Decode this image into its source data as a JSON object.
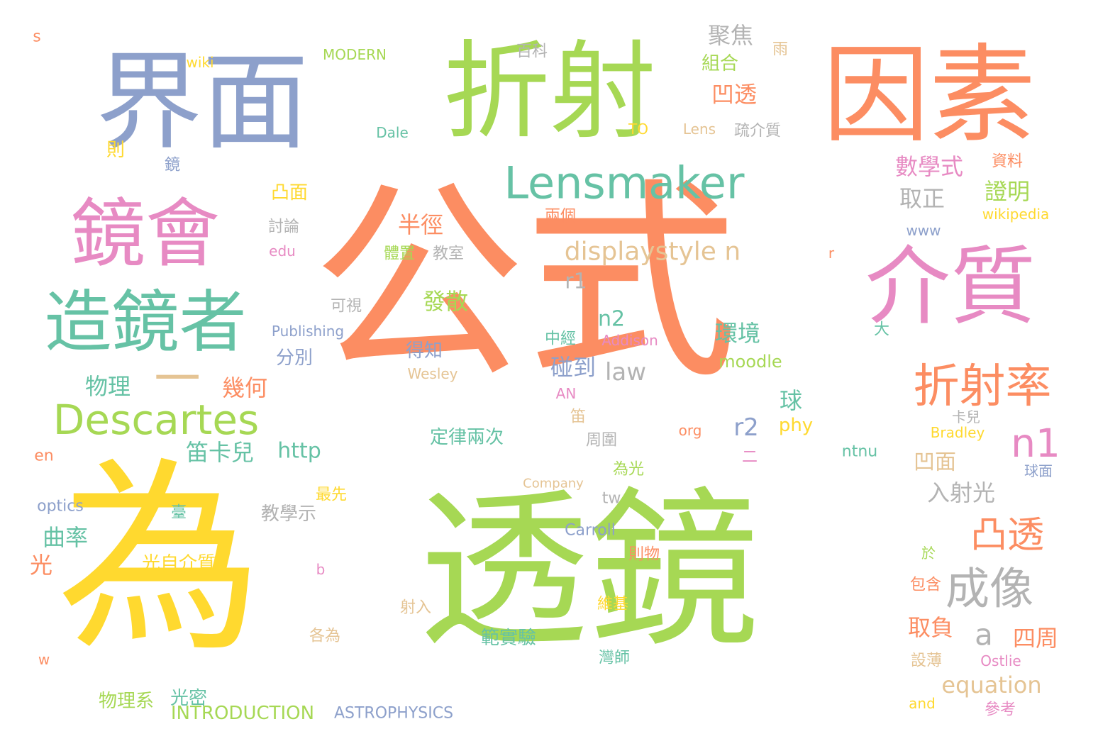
{
  "palette": {
    "orange": "#fc8d62",
    "green": "#a6d854",
    "blue": "#8da0cb",
    "pink": "#e78ac3",
    "teal": "#66c2a5",
    "yellow": "#ffd92f",
    "tan": "#e5c494",
    "gray": "#b3b3b3"
  },
  "words": [
    {
      "text": "公式",
      "color": "orange"
    },
    {
      "text": "透鏡",
      "color": "green"
    },
    {
      "text": "為",
      "color": "yellow"
    },
    {
      "text": "界面",
      "color": "blue"
    },
    {
      "text": "折射",
      "color": "green"
    },
    {
      "text": "因素",
      "color": "orange"
    },
    {
      "text": "鏡會",
      "color": "pink"
    },
    {
      "text": "介質",
      "color": "pink"
    },
    {
      "text": "造鏡者",
      "color": "teal"
    },
    {
      "text": "Lensmaker",
      "color": "teal"
    },
    {
      "text": "Descartes",
      "color": "green"
    },
    {
      "text": "折射率",
      "color": "orange"
    },
    {
      "text": "成像",
      "color": "gray"
    },
    {
      "text": "一",
      "color": "tan"
    },
    {
      "text": "凸透",
      "color": "orange"
    },
    {
      "text": "displaystyle n",
      "color": "tan"
    },
    {
      "text": "n1",
      "color": "pink"
    },
    {
      "text": "數學式",
      "color": "pink"
    },
    {
      "text": "證明",
      "color": "green"
    },
    {
      "text": "取正",
      "color": "gray"
    },
    {
      "text": "聚焦",
      "color": "gray"
    },
    {
      "text": "凹透",
      "color": "orange"
    },
    {
      "text": "組合",
      "color": "green"
    },
    {
      "text": "百科",
      "color": "gray"
    },
    {
      "text": "雨",
      "color": "tan"
    },
    {
      "text": "MODERN",
      "color": "green"
    },
    {
      "text": "wiki",
      "color": "yellow"
    },
    {
      "text": "s",
      "color": "orange"
    },
    {
      "text": "Dale",
      "color": "teal"
    },
    {
      "text": "TO",
      "color": "yellow"
    },
    {
      "text": "Lens",
      "color": "tan"
    },
    {
      "text": "疏介質",
      "color": "gray"
    },
    {
      "text": "則",
      "color": "yellow"
    },
    {
      "text": "鏡",
      "color": "blue"
    },
    {
      "text": "資料",
      "color": "orange"
    },
    {
      "text": "凸面",
      "color": "yellow"
    },
    {
      "text": "半徑",
      "color": "orange"
    },
    {
      "text": "討論",
      "color": "gray"
    },
    {
      "text": "兩個",
      "color": "orange"
    },
    {
      "text": "wikipedia",
      "color": "yellow"
    },
    {
      "text": "www",
      "color": "blue"
    },
    {
      "text": "edu",
      "color": "pink"
    },
    {
      "text": "體置",
      "color": "green"
    },
    {
      "text": "教室",
      "color": "gray"
    },
    {
      "text": "r",
      "color": "orange"
    },
    {
      "text": "r1",
      "color": "gray"
    },
    {
      "text": "可視",
      "color": "gray"
    },
    {
      "text": "發散",
      "color": "green"
    },
    {
      "text": "n2",
      "color": "teal"
    },
    {
      "text": "環境",
      "color": "teal"
    },
    {
      "text": "Publishing",
      "color": "blue"
    },
    {
      "text": "中經",
      "color": "teal"
    },
    {
      "text": "Addison",
      "color": "pink"
    },
    {
      "text": "大",
      "color": "teal"
    },
    {
      "text": "得知",
      "color": "blue"
    },
    {
      "text": "分別",
      "color": "blue"
    },
    {
      "text": "碰到",
      "color": "blue"
    },
    {
      "text": "law",
      "color": "gray"
    },
    {
      "text": "moodle",
      "color": "green"
    },
    {
      "text": "物理",
      "color": "teal"
    },
    {
      "text": "幾何",
      "color": "orange"
    },
    {
      "text": "Wesley",
      "color": "tan"
    },
    {
      "text": "AN",
      "color": "pink"
    },
    {
      "text": "球",
      "color": "teal"
    },
    {
      "text": "笛",
      "color": "tan"
    },
    {
      "text": "卡兒",
      "color": "gray"
    },
    {
      "text": "r2",
      "color": "blue"
    },
    {
      "text": "phy",
      "color": "yellow"
    },
    {
      "text": "二",
      "color": "pink"
    },
    {
      "text": "Bradley",
      "color": "yellow"
    },
    {
      "text": "笛卡兒",
      "color": "teal"
    },
    {
      "text": "http",
      "color": "teal"
    },
    {
      "text": "定律兩次",
      "color": "teal"
    },
    {
      "text": "周圍",
      "color": "gray"
    },
    {
      "text": "org",
      "color": "orange"
    },
    {
      "text": "ntnu",
      "color": "teal"
    },
    {
      "text": "凹面",
      "color": "tan"
    },
    {
      "text": "en",
      "color": "orange"
    },
    {
      "text": "球面",
      "color": "blue"
    },
    {
      "text": "為光",
      "color": "green"
    },
    {
      "text": "Company",
      "color": "tan"
    },
    {
      "text": "入射光",
      "color": "gray"
    },
    {
      "text": "optics",
      "color": "blue"
    },
    {
      "text": "最先",
      "color": "yellow"
    },
    {
      "text": "tw",
      "color": "gray"
    },
    {
      "text": "臺",
      "color": "teal"
    },
    {
      "text": "教學示",
      "color": "gray"
    },
    {
      "text": "曲率",
      "color": "teal"
    },
    {
      "text": "Carroll",
      "color": "blue"
    },
    {
      "text": "光自介質",
      "color": "yellow"
    },
    {
      "text": "則物",
      "color": "orange"
    },
    {
      "text": "於",
      "color": "green"
    },
    {
      "text": "光",
      "color": "orange"
    },
    {
      "text": "b",
      "color": "pink"
    },
    {
      "text": "包含",
      "color": "orange"
    },
    {
      "text": "射入",
      "color": "tan"
    },
    {
      "text": "維基",
      "color": "yellow"
    },
    {
      "text": "取負",
      "color": "orange"
    },
    {
      "text": "a",
      "color": "gray"
    },
    {
      "text": "四周",
      "color": "orange"
    },
    {
      "text": "各為",
      "color": "tan"
    },
    {
      "text": "範實驗",
      "color": "teal"
    },
    {
      "text": "w",
      "color": "orange"
    },
    {
      "text": "灣師",
      "color": "teal"
    },
    {
      "text": "設薄",
      "color": "tan"
    },
    {
      "text": "Ostlie",
      "color": "pink"
    },
    {
      "text": "equation",
      "color": "tan"
    },
    {
      "text": "物理系",
      "color": "green"
    },
    {
      "text": "光密",
      "color": "teal"
    },
    {
      "text": "INTRODUCTION",
      "color": "green"
    },
    {
      "text": "ASTROPHYSICS",
      "color": "blue"
    },
    {
      "text": "and",
      "color": "yellow"
    },
    {
      "text": "參考",
      "color": "pink"
    }
  ]
}
